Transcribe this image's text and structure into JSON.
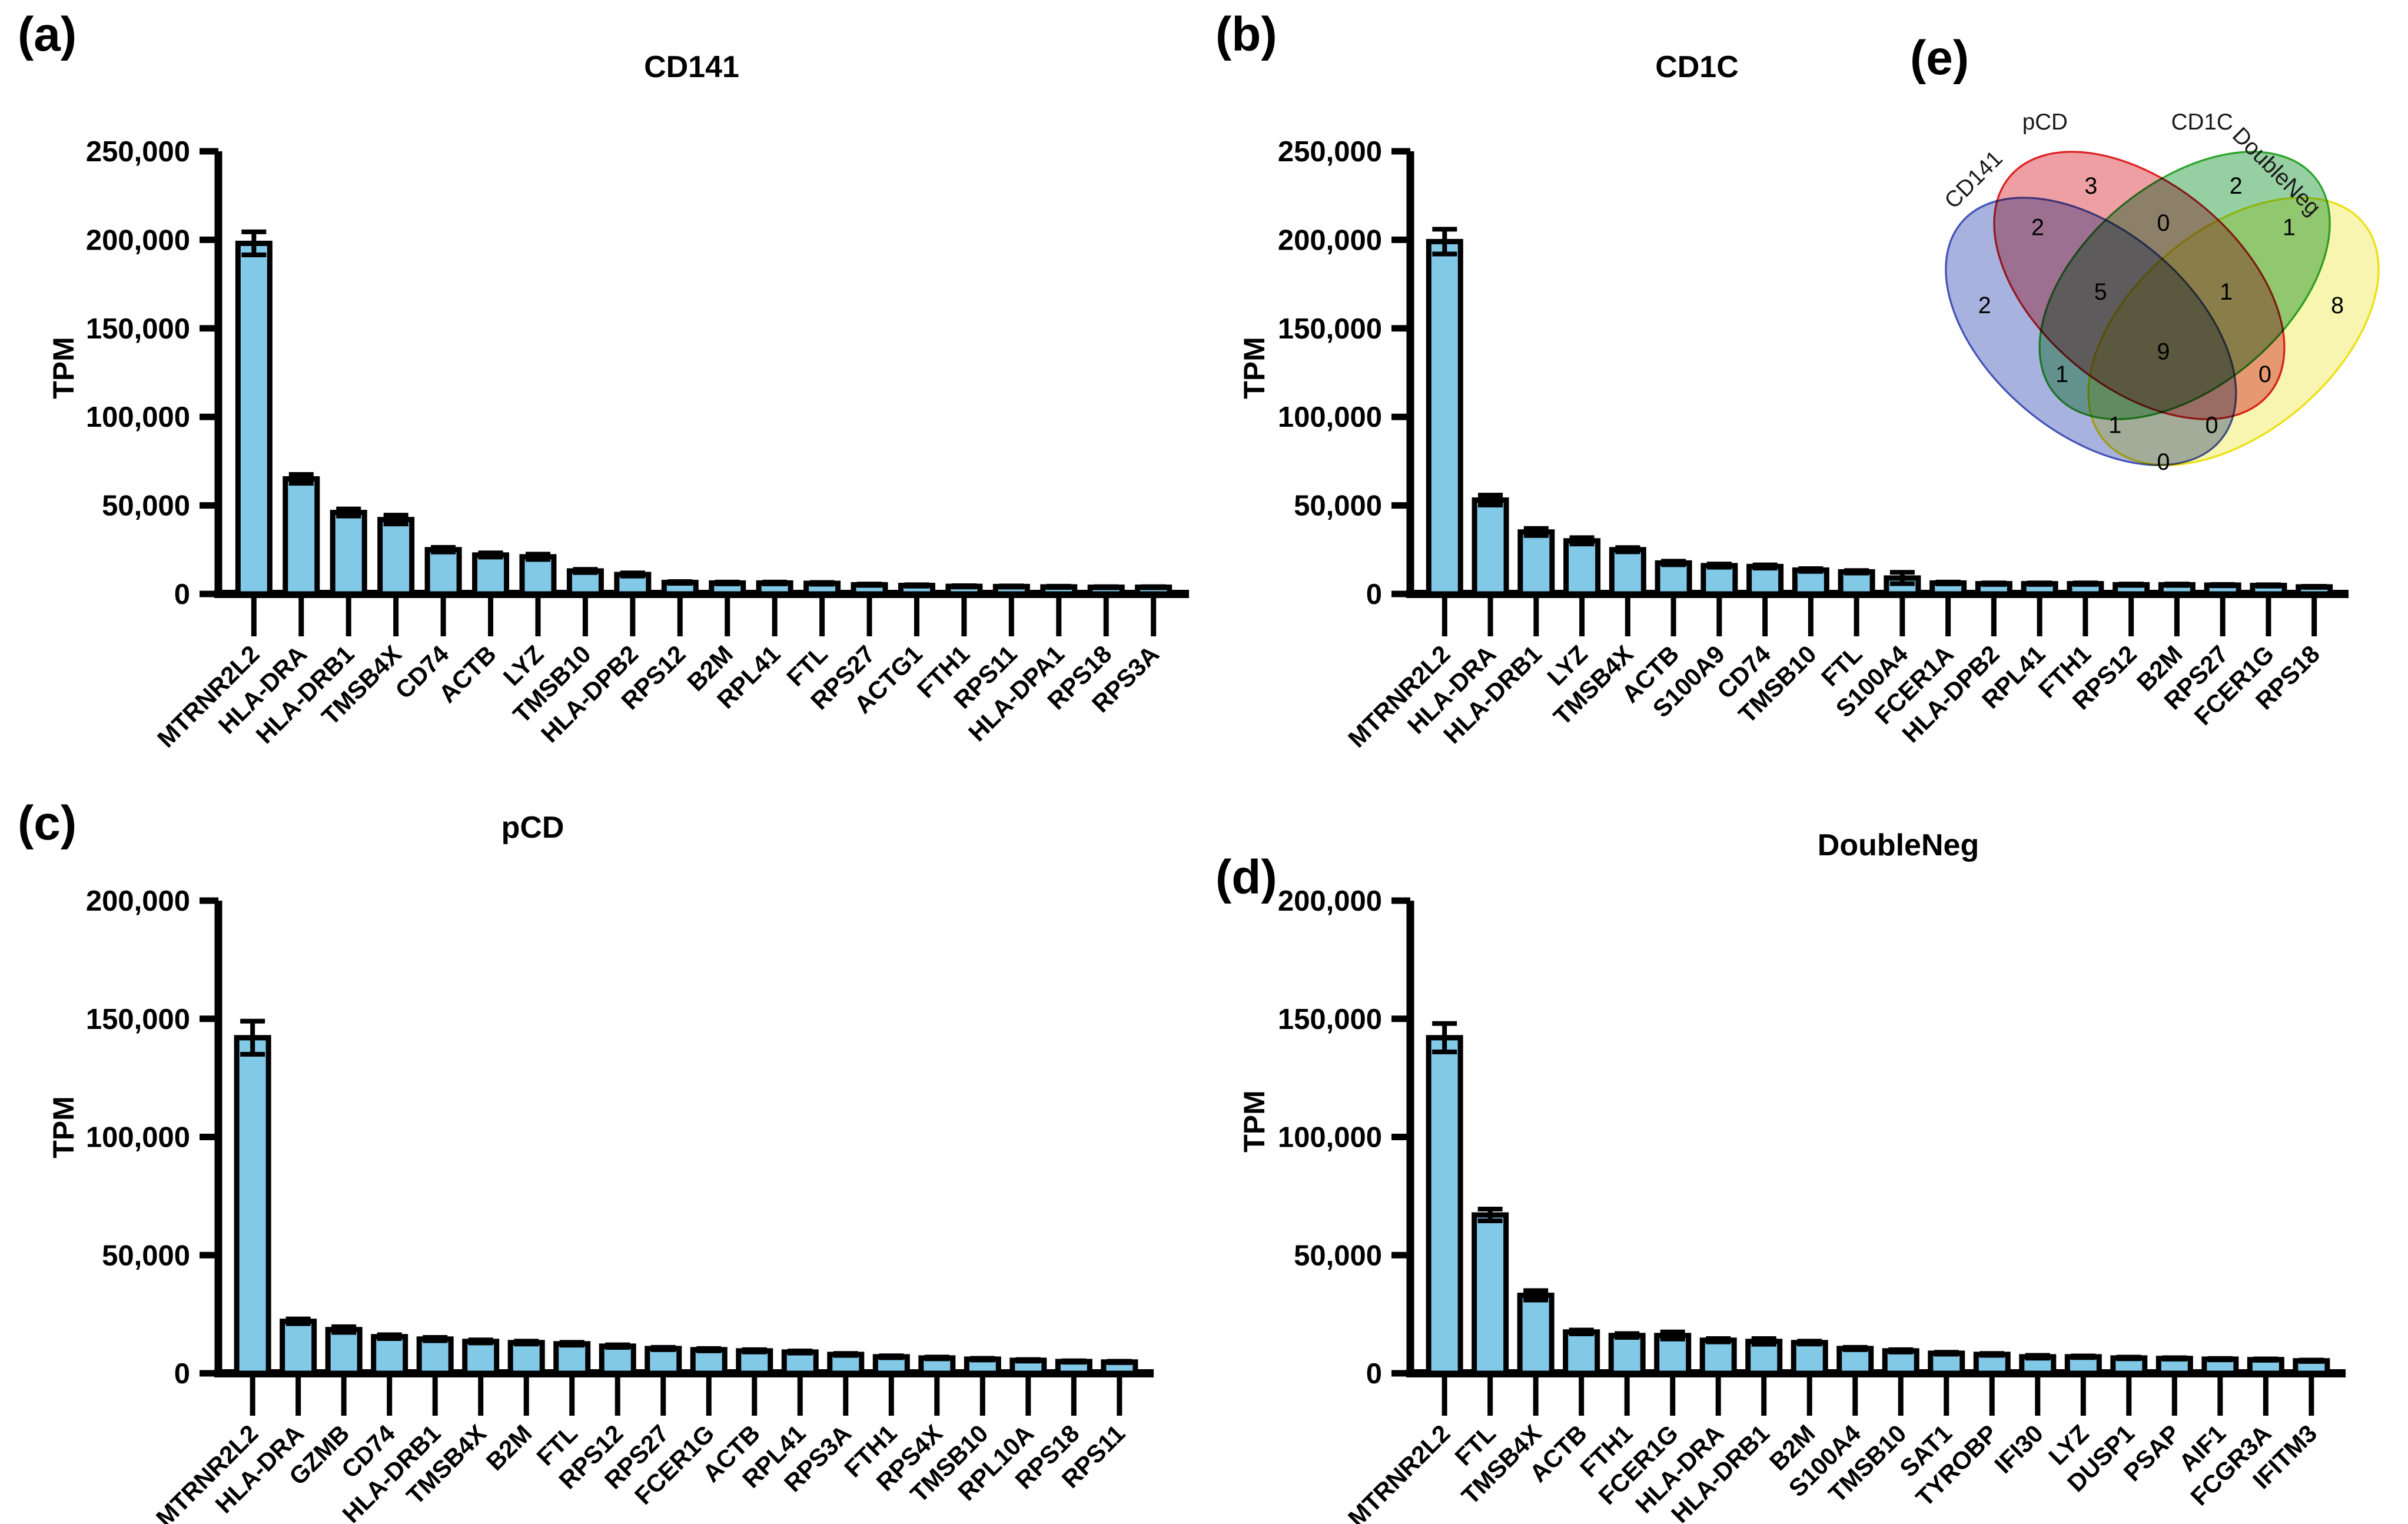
{
  "figure": {
    "letters": {
      "a": "(a)",
      "b": "(b)",
      "c": "(c)",
      "d": "(d)",
      "e": "(e)"
    }
  },
  "colors": {
    "bar_fill": "#82C9E8",
    "bar_stroke": "#000000",
    "axis": "#000000",
    "venn_cd141_fill": "#7282CC",
    "venn_cd141_stroke": "#4353B8",
    "venn_pcd_fill": "#E4646C",
    "venn_pcd_stroke": "#DD2222",
    "venn_cd1c_fill": "#55B168",
    "venn_cd1c_stroke": "#2CA42C",
    "venn_doubleneg_fill": "#F2EF7E",
    "venn_doubleneg_stroke": "#EDE012"
  },
  "chart_data": [
    {
      "type": "bar",
      "panel": "a",
      "title": "CD141",
      "xlabel": "",
      "ylabel": "TPM",
      "ylim": [
        0,
        250000
      ],
      "ytick_step": 50000,
      "grid": false,
      "legend": "none",
      "categories": [
        "MTRNR2L2",
        "HLA-DRA",
        "HLA-DRB1",
        "TMSB4X",
        "CD74",
        "ACTB",
        "LYZ",
        "TMSB10",
        "HLA-DPB2",
        "RPS12",
        "B2M",
        "RPL41",
        "FTL",
        "RPS27",
        "ACTG1",
        "FTH1",
        "RPS11",
        "HLA-DPA1",
        "RPS18",
        "RPS3A"
      ],
      "values": [
        198000,
        65000,
        46000,
        42000,
        25000,
        22000,
        21000,
        13000,
        11000,
        6500,
        6200,
        6200,
        6000,
        5200,
        4800,
        4300,
        4200,
        4000,
        3800,
        3800
      ],
      "errors": [
        6500,
        2500,
        2000,
        2500,
        1300,
        1200,
        1500,
        900,
        900,
        500,
        500,
        500,
        500,
        400,
        400,
        350,
        350,
        350,
        300,
        300
      ]
    },
    {
      "type": "bar",
      "panel": "b",
      "title": "CD1C",
      "xlabel": "",
      "ylabel": "TPM",
      "ylim": [
        0,
        250000
      ],
      "ytick_step": 50000,
      "grid": false,
      "legend": "none",
      "categories": [
        "MTRNR2L2",
        "HLA-DRA",
        "HLA-DRB1",
        "LYZ",
        "TMSB4X",
        "ACTB",
        "S100A9",
        "CD74",
        "TMSB10",
        "FTL",
        "S100A4",
        "FCER1A",
        "HLA-DPB2",
        "RPL41",
        "FTH1",
        "RPS12",
        "B2M",
        "RPS27",
        "FCER1G",
        "RPS18"
      ],
      "values": [
        199000,
        53000,
        35000,
        30000,
        25000,
        17500,
        16000,
        15500,
        13500,
        12500,
        9000,
        6200,
        5800,
        5800,
        5800,
        5200,
        5200,
        5000,
        4800,
        4000
      ],
      "errors": [
        7000,
        2800,
        2000,
        1800,
        1200,
        1000,
        900,
        900,
        800,
        700,
        3200,
        500,
        450,
        450,
        450,
        400,
        400,
        380,
        380,
        320
      ]
    },
    {
      "type": "bar",
      "panel": "c",
      "title": "pCD",
      "xlabel": "",
      "ylabel": "TPM",
      "ylim": [
        0,
        200000
      ],
      "ytick_step": 50000,
      "grid": false,
      "legend": "none",
      "categories": [
        "MTRNR2L2",
        "HLA-DRA",
        "GZMB",
        "CD74",
        "HLA-DRB1",
        "TMSB4X",
        "B2M",
        "FTL",
        "RPS12",
        "RPS27",
        "FCER1G",
        "ACTB",
        "RPL41",
        "RPS3A",
        "FTH1",
        "RPS4X",
        "TMSB10",
        "RPL10A",
        "RPS18",
        "RPS11"
      ],
      "values": [
        142000,
        22000,
        18500,
        15500,
        14500,
        13500,
        13000,
        12500,
        11500,
        10500,
        10000,
        9500,
        9000,
        8000,
        7000,
        6500,
        6000,
        5500,
        5000,
        4800
      ],
      "errors": [
        7000,
        1000,
        1200,
        800,
        700,
        650,
        600,
        600,
        550,
        500,
        500,
        480,
        450,
        420,
        400,
        380,
        350,
        320,
        300,
        300
      ]
    },
    {
      "type": "bar",
      "panel": "d",
      "title": "DoubleNeg",
      "xlabel": "",
      "ylabel": "TPM",
      "ylim": [
        0,
        200000
      ],
      "ytick_step": 50000,
      "grid": false,
      "legend": "none",
      "categories": [
        "MTRNR2L2",
        "FTL",
        "TMSB4X",
        "ACTB",
        "FTH1",
        "FCER1G",
        "HLA-DRA",
        "HLA-DRB1",
        "B2M",
        "S100A4",
        "TMSB10",
        "SAT1",
        "TYROBP",
        "IFI30",
        "LYZ",
        "DUSP1",
        "PSAP",
        "AIF1",
        "FCGR3A",
        "IFITM3"
      ],
      "values": [
        142000,
        67000,
        33000,
        17500,
        16000,
        16000,
        14000,
        13500,
        13000,
        10500,
        9500,
        8500,
        8000,
        7000,
        7000,
        6500,
        6300,
        6000,
        5800,
        5300
      ],
      "errors": [
        6000,
        2500,
        2000,
        800,
        800,
        1500,
        700,
        1200,
        600,
        500,
        500,
        400,
        400,
        600,
        350,
        350,
        300,
        300,
        300,
        300
      ]
    }
  ],
  "venn": {
    "panel": "e",
    "sets": [
      {
        "label": "CD141"
      },
      {
        "label": "pCD"
      },
      {
        "label": "CD1C"
      },
      {
        "label": "DoubleNeg"
      }
    ],
    "regions": [
      {
        "sets": "CD141",
        "value": "2"
      },
      {
        "sets": "pCD",
        "value": "3"
      },
      {
        "sets": "CD1C",
        "value": "2"
      },
      {
        "sets": "DoubleNeg",
        "value": "8"
      },
      {
        "sets": "CD141∩pCD",
        "value": "2"
      },
      {
        "sets": "pCD∩CD1C",
        "value": "0"
      },
      {
        "sets": "CD1C∩DoubleNeg",
        "value": "1"
      },
      {
        "sets": "CD141∩CD1C",
        "value": "1"
      },
      {
        "sets": "pCD∩DoubleNeg",
        "value": "0"
      },
      {
        "sets": "CD141∩DoubleNeg",
        "value": "0"
      },
      {
        "sets": "CD141∩pCD∩CD1C",
        "value": "5"
      },
      {
        "sets": "pCD∩CD1C∩DoubleNeg",
        "value": "1"
      },
      {
        "sets": "CD141∩CD1C∩DoubleNeg",
        "value": "1"
      },
      {
        "sets": "CD141∩pCD∩DoubleNeg",
        "value": "0"
      },
      {
        "sets": "CD141∩pCD∩CD1C∩DoubleNeg",
        "value": "9"
      }
    ]
  }
}
